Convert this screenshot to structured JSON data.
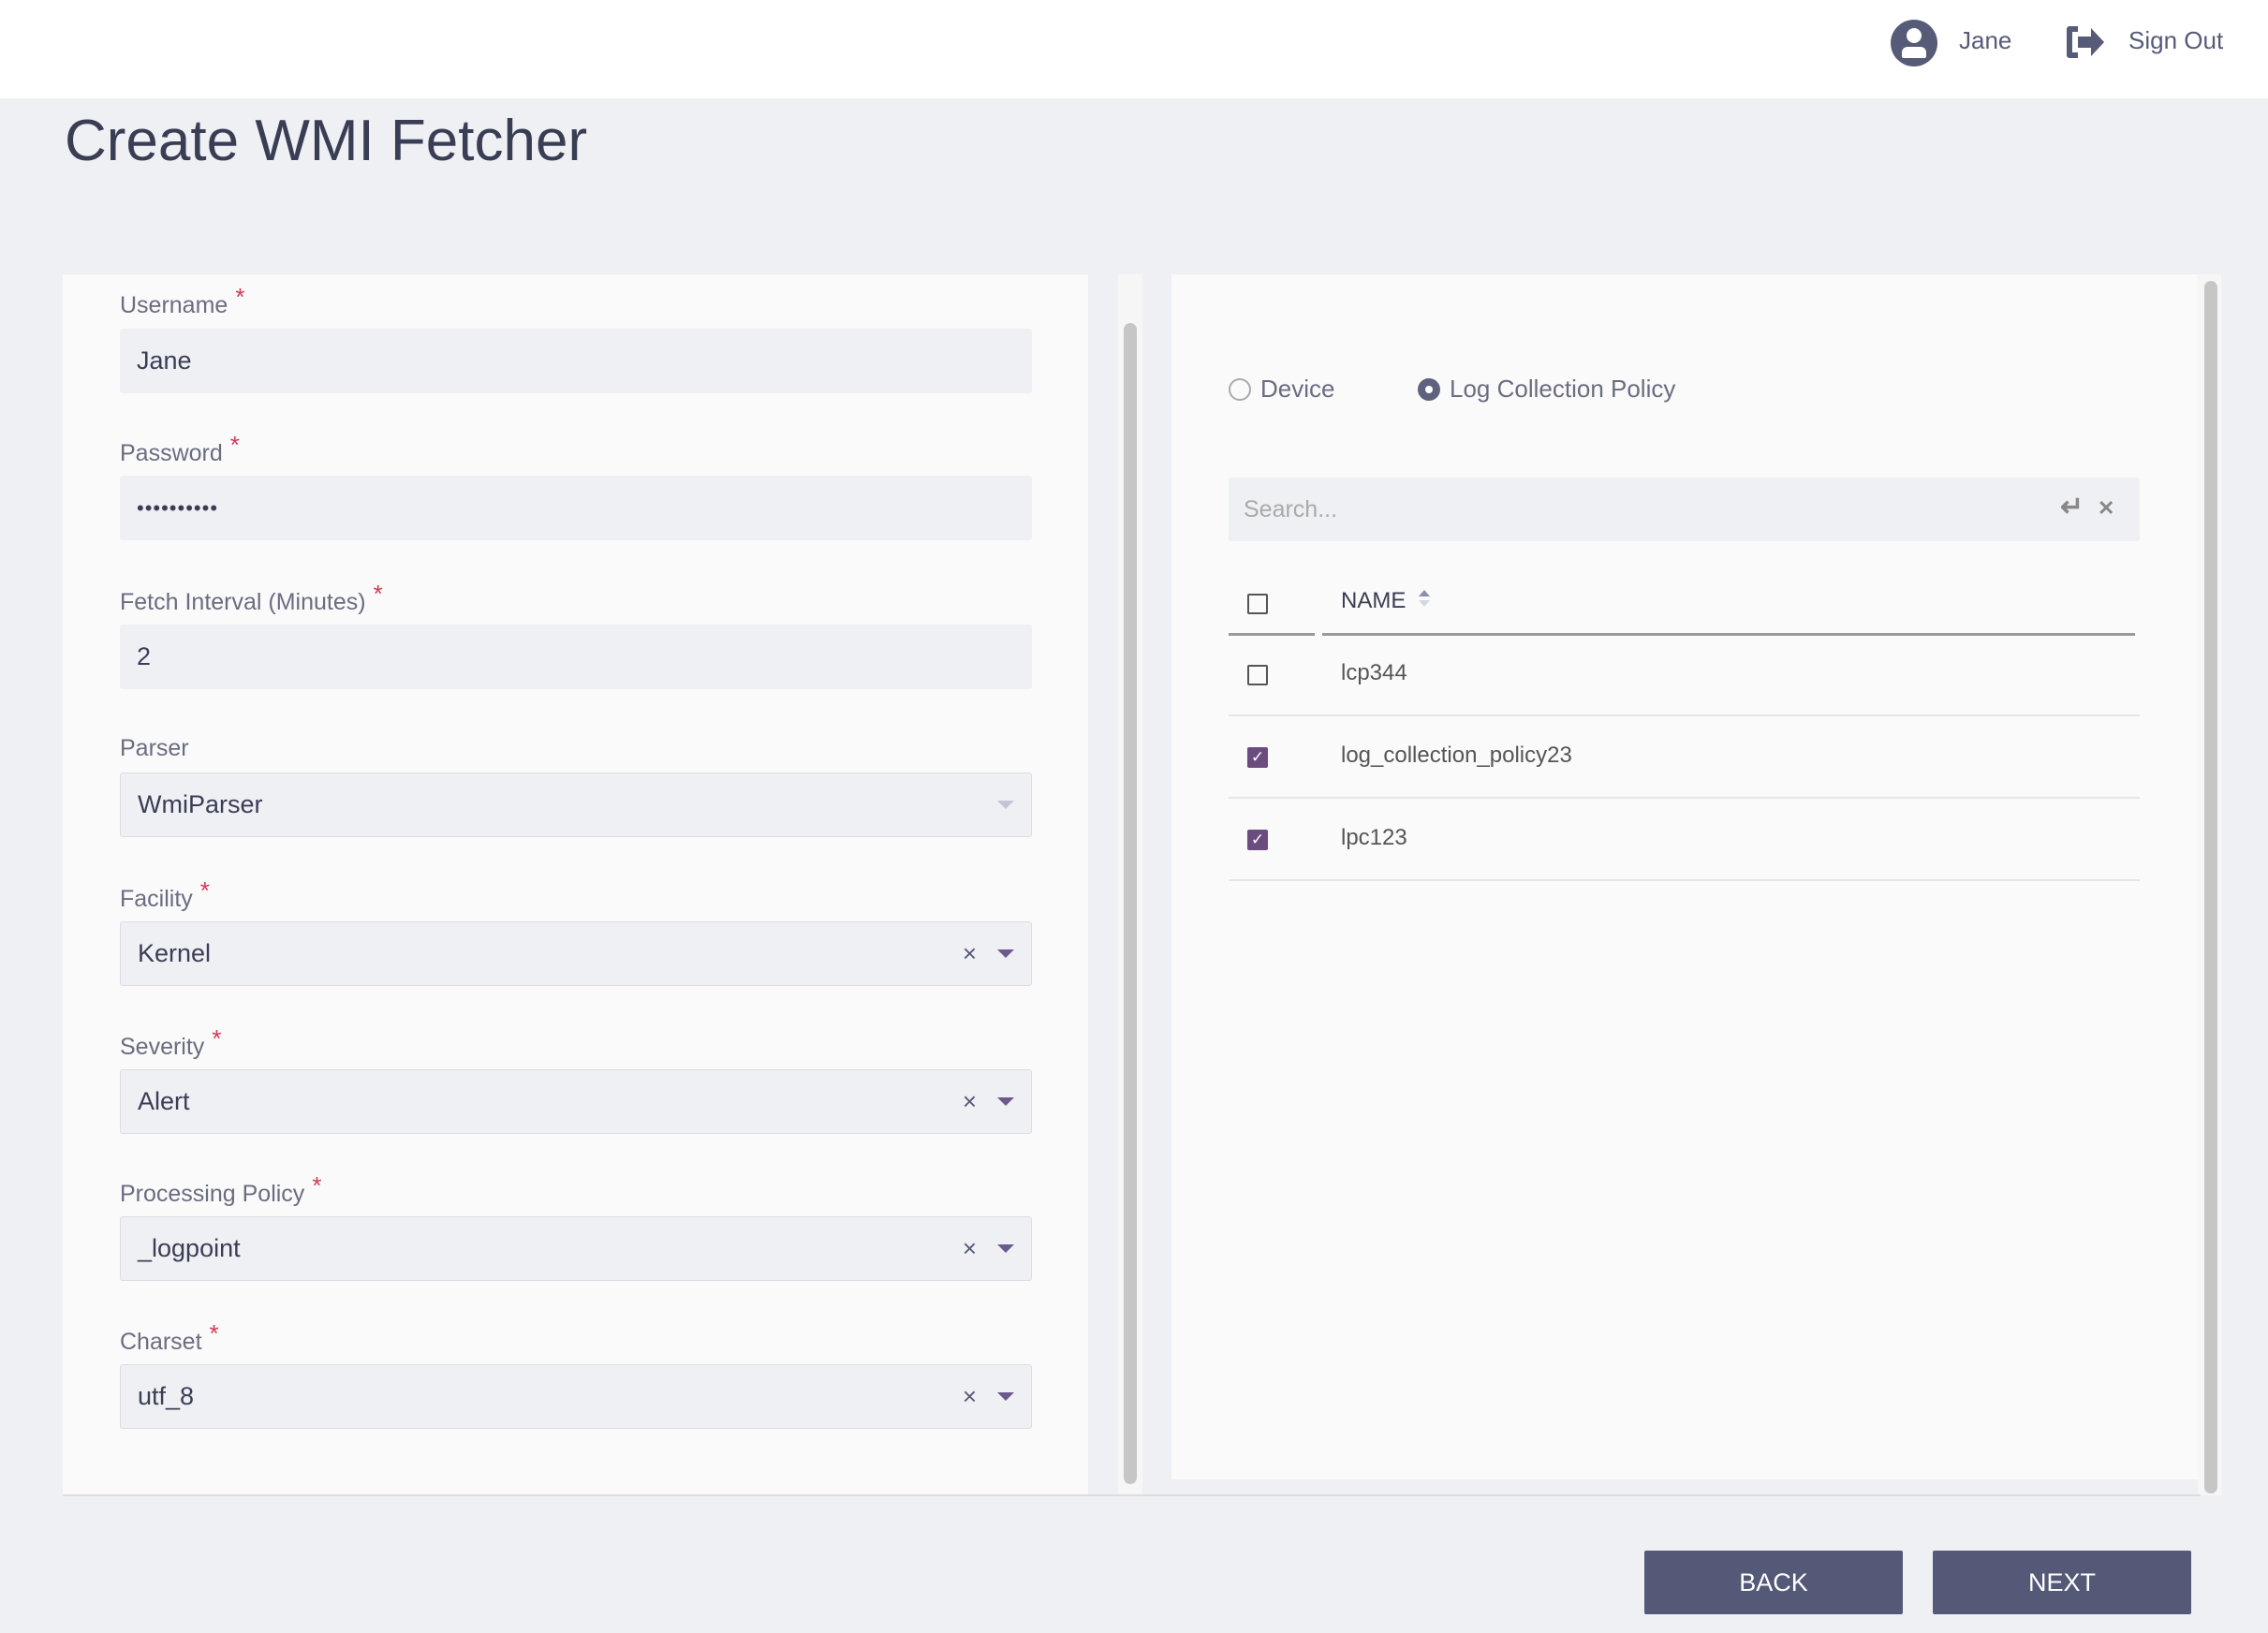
{
  "header": {
    "user": "Jane",
    "sign_out": "Sign Out"
  },
  "page_title": "Create WMI Fetcher",
  "form": {
    "username": {
      "label": "Username",
      "value": "Jane",
      "required": "*"
    },
    "password": {
      "label": "Password",
      "value": "••••••••••",
      "required": "*"
    },
    "fetch_interval": {
      "label": "Fetch Interval (Minutes)",
      "value": "2",
      "required": "*"
    },
    "parser": {
      "label": "Parser",
      "value": "WmiParser"
    },
    "facility": {
      "label": "Facility",
      "value": "Kernel",
      "required": "*",
      "clear": "×"
    },
    "severity": {
      "label": "Severity",
      "value": "Alert",
      "required": "*",
      "clear": "×"
    },
    "processing_policy": {
      "label": "Processing Policy",
      "value": "_logpoint",
      "required": "*",
      "clear": "×"
    },
    "charset": {
      "label": "Charset",
      "value": "utf_8",
      "required": "*",
      "clear": "×"
    }
  },
  "selector": {
    "radio_device": "Device",
    "radio_lcp": "Log Collection Policy",
    "selected_radio": "Log Collection Policy",
    "search_placeholder": "Search...",
    "enter_glyph": "↵",
    "clear_glyph": "✕",
    "column_name": "NAME",
    "rows": [
      {
        "name": "lcp344",
        "checked": false
      },
      {
        "name": "log_collection_policy23",
        "checked": true
      },
      {
        "name": "lpc123",
        "checked": true
      }
    ],
    "check_glyph": "✓"
  },
  "footer": {
    "back": "BACK",
    "next": "NEXT"
  },
  "colors": {
    "accent": "#545978",
    "checkbox": "#6b4c7e",
    "required": "#d03a5a"
  }
}
